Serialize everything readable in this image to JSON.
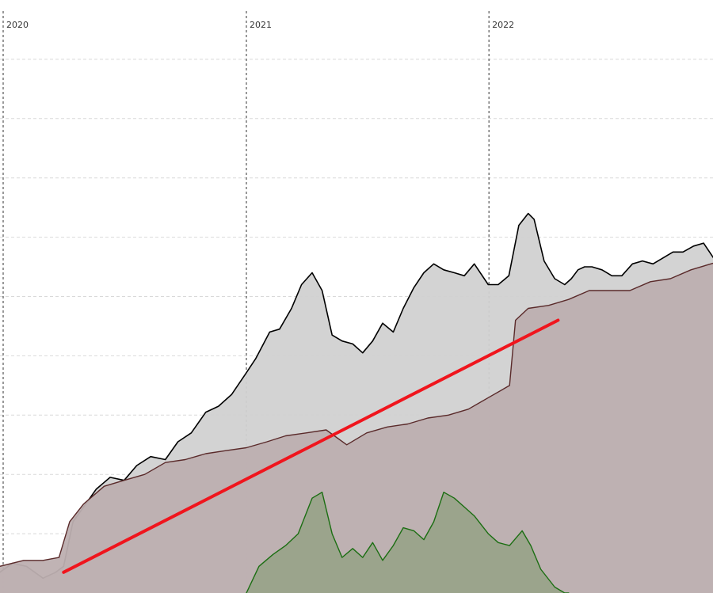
{
  "chart_data": {
    "type": "area",
    "title": "",
    "xlabel": "",
    "ylabel": "",
    "x_tick_labels": [
      "2020",
      "2021",
      "2022"
    ],
    "grid": {
      "horizontal": true,
      "vertical": true
    },
    "ylim": [
      0,
      100
    ],
    "series": [
      {
        "role": "price",
        "color": "#000000",
        "fill": "#d1d1d1",
        "x": [
          "2019-12-27",
          "2020-01-15",
          "2020-02-05",
          "2020-03-01",
          "2020-03-20",
          "2020-04-01",
          "2020-04-15",
          "2020-05-01",
          "2020-05-20",
          "2020-06-10",
          "2020-07-01",
          "2020-07-20",
          "2020-08-10",
          "2020-09-01",
          "2020-09-20",
          "2020-10-10",
          "2020-11-01",
          "2020-11-20",
          "2020-12-10",
          "2020-12-31",
          "2021-01-15",
          "2021-02-05",
          "2021-02-20",
          "2021-03-10",
          "2021-03-25",
          "2021-04-10",
          "2021-04-25",
          "2021-05-10",
          "2021-05-25",
          "2021-06-10",
          "2021-06-25",
          "2021-07-10",
          "2021-07-25",
          "2021-08-10",
          "2021-08-25",
          "2021-09-10",
          "2021-09-25",
          "2021-10-10",
          "2021-10-25",
          "2021-11-10",
          "2021-11-25",
          "2021-12-10",
          "2021-12-31",
          "2022-01-15",
          "2022-01-31",
          "2022-02-15",
          "2022-03-01",
          "2022-03-10",
          "2022-03-25",
          "2022-04-10",
          "2022-04-25",
          "2022-05-05",
          "2022-05-15",
          "2022-05-25",
          "2022-06-05",
          "2022-06-20",
          "2022-07-05",
          "2022-07-20",
          "2022-08-05",
          "2022-08-20",
          "2022-09-05",
          "2022-09-20",
          "2022-10-05",
          "2022-10-20",
          "2022-11-05",
          "2022-11-20",
          "2022-12-05",
          "2022-12-20"
        ],
        "values": [
          3.5,
          5.0,
          4.5,
          2.5,
          3.5,
          4.5,
          12.0,
          14.5,
          17.5,
          19.5,
          19.0,
          21.5,
          23.0,
          22.5,
          25.5,
          27.0,
          30.5,
          31.5,
          33.5,
          37.0,
          39.5,
          44.0,
          44.5,
          48.0,
          52.0,
          54.0,
          51.0,
          43.5,
          42.5,
          42.0,
          40.5,
          42.5,
          45.5,
          44.0,
          48.0,
          51.5,
          54.0,
          55.5,
          54.5,
          54.0,
          53.5,
          55.5,
          52.0,
          52.0,
          53.5,
          62.0,
          64.0,
          63.0,
          56.0,
          53.0,
          52.0,
          53.0,
          54.5,
          55.0,
          55.0,
          54.5,
          53.5,
          53.5,
          55.5,
          56.0,
          55.5,
          56.5,
          57.5,
          57.5,
          58.5,
          59.0,
          56.5,
          56.5
        ]
      },
      {
        "role": "trailing-line",
        "color": "#5a2a2a",
        "fill": "#bdafb0",
        "x": [
          "2019-12-27",
          "2020-02-01",
          "2020-03-01",
          "2020-03-25",
          "2020-04-10",
          "2020-05-01",
          "2020-06-01",
          "2020-07-01",
          "2020-08-01",
          "2020-09-01",
          "2020-10-01",
          "2020-11-01",
          "2020-12-01",
          "2021-01-01",
          "2021-02-01",
          "2021-03-01",
          "2021-04-01",
          "2021-05-01",
          "2021-06-01",
          "2021-07-01",
          "2021-08-01",
          "2021-09-01",
          "2021-10-01",
          "2021-11-01",
          "2021-12-01",
          "2022-01-01",
          "2022-02-01",
          "2022-02-10",
          "2022-03-01",
          "2022-04-01",
          "2022-05-01",
          "2022-06-01",
          "2022-07-01",
          "2022-08-01",
          "2022-09-01",
          "2022-10-01",
          "2022-11-01",
          "2022-12-01",
          "2022-12-31"
        ],
        "values": [
          4.5,
          5.5,
          5.5,
          6.0,
          12.0,
          15.0,
          18.0,
          19.0,
          20.0,
          22.0,
          22.5,
          23.5,
          24.0,
          24.5,
          25.5,
          26.5,
          27.0,
          27.5,
          25.0,
          27.0,
          28.0,
          28.5,
          29.5,
          30.0,
          31.0,
          33.0,
          35.0,
          46.0,
          48.0,
          48.5,
          49.5,
          51.0,
          51.0,
          51.0,
          52.5,
          53.0,
          54.5,
          55.5,
          56.5
        ]
      },
      {
        "role": "oscillator",
        "color": "#1b6e12",
        "fill": "#99a38a",
        "x": [
          "2021-01-01",
          "2021-01-20",
          "2021-02-10",
          "2021-03-01",
          "2021-03-20",
          "2021-04-10",
          "2021-04-25",
          "2021-05-10",
          "2021-05-25",
          "2021-06-10",
          "2021-06-25",
          "2021-07-10",
          "2021-07-25",
          "2021-08-10",
          "2021-08-25",
          "2021-09-10",
          "2021-09-25",
          "2021-10-10",
          "2021-10-25",
          "2021-11-10",
          "2021-11-25",
          "2021-12-10",
          "2021-12-31",
          "2022-01-15",
          "2022-02-01",
          "2022-02-20",
          "2022-03-05",
          "2022-03-20",
          "2022-04-10",
          "2022-04-25",
          "2022-05-01"
        ],
        "values": [
          0.0,
          4.5,
          6.5,
          8.0,
          10.0,
          16.0,
          17.0,
          10.0,
          6.0,
          7.5,
          6.0,
          8.5,
          5.5,
          8.0,
          11.0,
          10.5,
          9.0,
          12.0,
          17.0,
          16.0,
          14.5,
          13.0,
          10.0,
          8.5,
          8.0,
          10.5,
          8.0,
          4.0,
          1.0,
          0.0,
          0.0
        ]
      },
      {
        "role": "trend-line",
        "color": "#f0151d",
        "x": [
          "2020-04-01",
          "2022-04-15"
        ],
        "values": [
          3.5,
          46.0
        ]
      }
    ]
  }
}
